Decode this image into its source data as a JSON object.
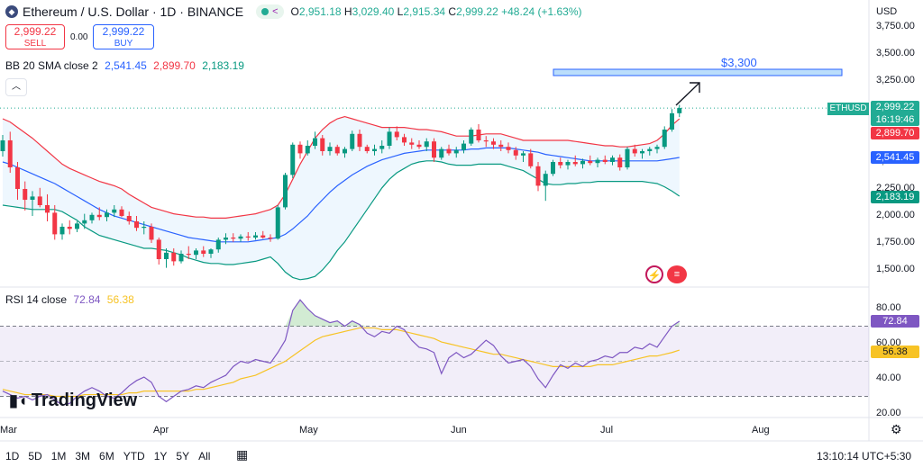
{
  "header": {
    "symbol_title": "Ethereum / U.S. Dollar · 1D · BINANCE",
    "ohlc": {
      "o_label": "O",
      "o": "2,951.18",
      "h_label": "H",
      "h": "3,029.40",
      "l_label": "L",
      "l": "2,915.34",
      "c_label": "C",
      "c": "2,999.22",
      "change": "+48.24 (+1.63%)"
    },
    "currency": "USD"
  },
  "trade": {
    "sell_price": "2,999.22",
    "sell_label": "SELL",
    "spread": "0.00",
    "buy_price": "2,999.22",
    "buy_label": "BUY"
  },
  "bb_indicator": {
    "label": "BB 20 SMA close 2",
    "basis": "2,541.45",
    "upper": "2,899.70",
    "lower": "2,183.19",
    "colors": {
      "basis": "#2962ff",
      "upper": "#f23645",
      "lower": "#089981"
    }
  },
  "rsi_indicator": {
    "label": "RSI 14 close",
    "rsi": "72.84",
    "ma": "56.38",
    "colors": {
      "rsi": "#7e57c2",
      "ma": "#f7c325"
    }
  },
  "price_axis": [
    "3,750.00",
    "3,500.00",
    "3,250.00",
    "3,000.00",
    "2,750.00",
    "2,500.00",
    "2,250.00",
    "2,000.00",
    "1,750.00",
    "1,500.00"
  ],
  "rsi_axis": [
    "80.00",
    "60.00",
    "40.00",
    "20.00"
  ],
  "price_tags": {
    "symbol": "ETHUSD",
    "last": "2,999.22",
    "countdown": "16:19:46",
    "upper": "2,899.70",
    "basis": "2,541.45",
    "lower": "2,183.19",
    "rsi": "72.84",
    "rsi_ma": "56.38"
  },
  "x_axis": [
    "Mar",
    "Apr",
    "May",
    "Jun",
    "Jul",
    "Aug"
  ],
  "drawing": {
    "label": "$3,300",
    "price": 3300
  },
  "timeframes": [
    "1D",
    "5D",
    "1M",
    "3M",
    "6M",
    "YTD",
    "1Y",
    "5Y",
    "All"
  ],
  "clock": "13:10:14 UTC+5:30",
  "brand": "TradingView",
  "colors": {
    "up": "#089981",
    "down": "#f23645",
    "last_price": "#22ab94",
    "accent": "#2962ff"
  },
  "icons": [
    "eth-logo-icon",
    "share-icon",
    "collapse-icon",
    "arrow-icon",
    "lightning-icon",
    "flag-icon",
    "settings-icon",
    "calendar-range-icon",
    "tradingview-logo-icon"
  ],
  "chart_data": {
    "type": "candlestick",
    "price_scale": {
      "min": 1400,
      "max": 3800
    },
    "candles": [
      {
        "o": 2600,
        "h": 2750,
        "l": 2550,
        "c": 2700
      },
      {
        "o": 2700,
        "h": 2780,
        "l": 2400,
        "c": 2450
      },
      {
        "o": 2450,
        "h": 2500,
        "l": 2150,
        "c": 2250
      },
      {
        "o": 2250,
        "h": 2320,
        "l": 2050,
        "c": 2150
      },
      {
        "o": 2150,
        "h": 2230,
        "l": 2000,
        "c": 2180
      },
      {
        "o": 2180,
        "h": 2260,
        "l": 2080,
        "c": 2100
      },
      {
        "o": 2100,
        "h": 2200,
        "l": 1950,
        "c": 2030
      },
      {
        "o": 2030,
        "h": 2100,
        "l": 1780,
        "c": 1830
      },
      {
        "o": 1830,
        "h": 1930,
        "l": 1780,
        "c": 1900
      },
      {
        "o": 1900,
        "h": 1960,
        "l": 1830,
        "c": 1880
      },
      {
        "o": 1880,
        "h": 1950,
        "l": 1850,
        "c": 1930
      },
      {
        "o": 1930,
        "h": 2020,
        "l": 1880,
        "c": 1960
      },
      {
        "o": 1960,
        "h": 2030,
        "l": 1930,
        "c": 2010
      },
      {
        "o": 2010,
        "h": 2080,
        "l": 1960,
        "c": 1990
      },
      {
        "o": 1990,
        "h": 2060,
        "l": 1950,
        "c": 2030
      },
      {
        "o": 2030,
        "h": 2100,
        "l": 1990,
        "c": 2060
      },
      {
        "o": 2060,
        "h": 2090,
        "l": 1990,
        "c": 2000
      },
      {
        "o": 2000,
        "h": 2040,
        "l": 1920,
        "c": 1950
      },
      {
        "o": 1950,
        "h": 2000,
        "l": 1860,
        "c": 1890
      },
      {
        "o": 1890,
        "h": 1950,
        "l": 1830,
        "c": 1900
      },
      {
        "o": 1900,
        "h": 1930,
        "l": 1750,
        "c": 1780
      },
      {
        "o": 1780,
        "h": 1800,
        "l": 1550,
        "c": 1600
      },
      {
        "o": 1600,
        "h": 1700,
        "l": 1520,
        "c": 1660
      },
      {
        "o": 1660,
        "h": 1700,
        "l": 1540,
        "c": 1580
      },
      {
        "o": 1580,
        "h": 1680,
        "l": 1560,
        "c": 1650
      },
      {
        "o": 1650,
        "h": 1720,
        "l": 1600,
        "c": 1640
      },
      {
        "o": 1640,
        "h": 1700,
        "l": 1600,
        "c": 1680
      },
      {
        "o": 1680,
        "h": 1720,
        "l": 1620,
        "c": 1650
      },
      {
        "o": 1650,
        "h": 1700,
        "l": 1610,
        "c": 1690
      },
      {
        "o": 1690,
        "h": 1800,
        "l": 1660,
        "c": 1780
      },
      {
        "o": 1780,
        "h": 1840,
        "l": 1740,
        "c": 1800
      },
      {
        "o": 1800,
        "h": 1840,
        "l": 1760,
        "c": 1790
      },
      {
        "o": 1790,
        "h": 1830,
        "l": 1760,
        "c": 1810
      },
      {
        "o": 1810,
        "h": 1850,
        "l": 1770,
        "c": 1800
      },
      {
        "o": 1800,
        "h": 1850,
        "l": 1780,
        "c": 1820
      },
      {
        "o": 1820,
        "h": 1860,
        "l": 1790,
        "c": 1800
      },
      {
        "o": 1800,
        "h": 1830,
        "l": 1760,
        "c": 1790
      },
      {
        "o": 1790,
        "h": 2100,
        "l": 1780,
        "c": 2080
      },
      {
        "o": 2080,
        "h": 2400,
        "l": 2060,
        "c": 2380
      },
      {
        "o": 2380,
        "h": 2680,
        "l": 2350,
        "c": 2660
      },
      {
        "o": 2660,
        "h": 2690,
        "l": 2530,
        "c": 2580
      },
      {
        "o": 2580,
        "h": 2700,
        "l": 2560,
        "c": 2650
      },
      {
        "o": 2650,
        "h": 2780,
        "l": 2620,
        "c": 2720
      },
      {
        "o": 2720,
        "h": 2750,
        "l": 2560,
        "c": 2600
      },
      {
        "o": 2600,
        "h": 2680,
        "l": 2560,
        "c": 2640
      },
      {
        "o": 2640,
        "h": 2660,
        "l": 2560,
        "c": 2580
      },
      {
        "o": 2580,
        "h": 2640,
        "l": 2540,
        "c": 2620
      },
      {
        "o": 2620,
        "h": 2790,
        "l": 2600,
        "c": 2760
      },
      {
        "o": 2760,
        "h": 2800,
        "l": 2600,
        "c": 2640
      },
      {
        "o": 2640,
        "h": 2660,
        "l": 2580,
        "c": 2600
      },
      {
        "o": 2600,
        "h": 2660,
        "l": 2560,
        "c": 2620
      },
      {
        "o": 2620,
        "h": 2700,
        "l": 2580,
        "c": 2650
      },
      {
        "o": 2650,
        "h": 2820,
        "l": 2620,
        "c": 2780
      },
      {
        "o": 2780,
        "h": 2830,
        "l": 2700,
        "c": 2730
      },
      {
        "o": 2730,
        "h": 2760,
        "l": 2650,
        "c": 2680
      },
      {
        "o": 2680,
        "h": 2720,
        "l": 2620,
        "c": 2660
      },
      {
        "o": 2660,
        "h": 2700,
        "l": 2620,
        "c": 2640
      },
      {
        "o": 2640,
        "h": 2720,
        "l": 2600,
        "c": 2690
      },
      {
        "o": 2690,
        "h": 2720,
        "l": 2500,
        "c": 2540
      },
      {
        "o": 2540,
        "h": 2640,
        "l": 2520,
        "c": 2620
      },
      {
        "o": 2620,
        "h": 2660,
        "l": 2560,
        "c": 2580
      },
      {
        "o": 2580,
        "h": 2640,
        "l": 2540,
        "c": 2610
      },
      {
        "o": 2610,
        "h": 2700,
        "l": 2580,
        "c": 2670
      },
      {
        "o": 2670,
        "h": 2820,
        "l": 2650,
        "c": 2800
      },
      {
        "o": 2800,
        "h": 2850,
        "l": 2680,
        "c": 2700
      },
      {
        "o": 2700,
        "h": 2740,
        "l": 2640,
        "c": 2690
      },
      {
        "o": 2690,
        "h": 2720,
        "l": 2620,
        "c": 2660
      },
      {
        "o": 2660,
        "h": 2700,
        "l": 2600,
        "c": 2640
      },
      {
        "o": 2640,
        "h": 2680,
        "l": 2580,
        "c": 2610
      },
      {
        "o": 2610,
        "h": 2640,
        "l": 2520,
        "c": 2560
      },
      {
        "o": 2560,
        "h": 2600,
        "l": 2500,
        "c": 2580
      },
      {
        "o": 2580,
        "h": 2620,
        "l": 2440,
        "c": 2460
      },
      {
        "o": 2460,
        "h": 2500,
        "l": 2230,
        "c": 2280
      },
      {
        "o": 2280,
        "h": 2420,
        "l": 2140,
        "c": 2390
      },
      {
        "o": 2390,
        "h": 2520,
        "l": 2370,
        "c": 2500
      },
      {
        "o": 2500,
        "h": 2540,
        "l": 2440,
        "c": 2470
      },
      {
        "o": 2470,
        "h": 2520,
        "l": 2430,
        "c": 2500
      },
      {
        "o": 2500,
        "h": 2560,
        "l": 2460,
        "c": 2480
      },
      {
        "o": 2480,
        "h": 2530,
        "l": 2440,
        "c": 2510
      },
      {
        "o": 2510,
        "h": 2560,
        "l": 2470,
        "c": 2490
      },
      {
        "o": 2490,
        "h": 2540,
        "l": 2450,
        "c": 2520
      },
      {
        "o": 2520,
        "h": 2560,
        "l": 2480,
        "c": 2500
      },
      {
        "o": 2500,
        "h": 2560,
        "l": 2470,
        "c": 2540
      },
      {
        "o": 2540,
        "h": 2570,
        "l": 2420,
        "c": 2450
      },
      {
        "o": 2450,
        "h": 2640,
        "l": 2430,
        "c": 2620
      },
      {
        "o": 2620,
        "h": 2660,
        "l": 2550,
        "c": 2580
      },
      {
        "o": 2580,
        "h": 2620,
        "l": 2530,
        "c": 2600
      },
      {
        "o": 2600,
        "h": 2640,
        "l": 2560,
        "c": 2620
      },
      {
        "o": 2620,
        "h": 2660,
        "l": 2580,
        "c": 2640
      },
      {
        "o": 2640,
        "h": 2830,
        "l": 2620,
        "c": 2800
      },
      {
        "o": 2800,
        "h": 2990,
        "l": 2780,
        "c": 2951
      },
      {
        "o": 2951.18,
        "h": 3029.4,
        "l": 2915.34,
        "c": 2999.22
      }
    ],
    "bb_upper": [
      2900,
      2870,
      2820,
      2770,
      2720,
      2660,
      2600,
      2540,
      2480,
      2440,
      2410,
      2380,
      2350,
      2320,
      2300,
      2280,
      2250,
      2200,
      2160,
      2120,
      2080,
      2060,
      2040,
      2020,
      2010,
      2000,
      1990,
      1990,
      1980,
      1980,
      1980,
      1990,
      2000,
      2010,
      2020,
      2040,
      2060,
      2100,
      2200,
      2340,
      2480,
      2600,
      2720,
      2800,
      2860,
      2900,
      2920,
      2900,
      2880,
      2860,
      2840,
      2820,
      2820,
      2820,
      2820,
      2810,
      2800,
      2800,
      2790,
      2780,
      2760,
      2740,
      2740,
      2740,
      2750,
      2760,
      2760,
      2760,
      2740,
      2720,
      2700,
      2700,
      2700,
      2700,
      2700,
      2700,
      2700,
      2690,
      2680,
      2670,
      2660,
      2650,
      2650,
      2640,
      2640,
      2650,
      2660,
      2670,
      2700,
      2760,
      2840,
      2899.7
    ],
    "bb_basis": [
      2500,
      2480,
      2450,
      2420,
      2390,
      2360,
      2330,
      2300,
      2260,
      2220,
      2180,
      2140,
      2100,
      2060,
      2030,
      2000,
      1980,
      1960,
      1940,
      1920,
      1900,
      1880,
      1860,
      1840,
      1820,
      1800,
      1790,
      1780,
      1770,
      1760,
      1760,
      1760,
      1760,
      1760,
      1770,
      1780,
      1790,
      1800,
      1830,
      1880,
      1940,
      2000,
      2080,
      2150,
      2220,
      2280,
      2330,
      2380,
      2420,
      2460,
      2490,
      2520,
      2540,
      2560,
      2580,
      2590,
      2600,
      2610,
      2610,
      2610,
      2610,
      2610,
      2610,
      2620,
      2620,
      2630,
      2630,
      2630,
      2630,
      2620,
      2610,
      2600,
      2590,
      2570,
      2560,
      2550,
      2540,
      2530,
      2520,
      2510,
      2510,
      2510,
      2510,
      2510,
      2510,
      2510,
      2510,
      2510,
      2510,
      2520,
      2530,
      2541.45
    ],
    "bb_lower": [
      2100,
      2090,
      2080,
      2070,
      2060,
      2060,
      2060,
      2060,
      2040,
      2000,
      1960,
      1900,
      1860,
      1820,
      1800,
      1780,
      1760,
      1740,
      1720,
      1700,
      1700,
      1690,
      1680,
      1660,
      1640,
      1610,
      1590,
      1570,
      1560,
      1560,
      1550,
      1550,
      1560,
      1570,
      1580,
      1600,
      1620,
      1560,
      1480,
      1430,
      1410,
      1420,
      1440,
      1500,
      1580,
      1680,
      1760,
      1860,
      1960,
      2060,
      2160,
      2260,
      2340,
      2400,
      2440,
      2480,
      2500,
      2510,
      2510,
      2500,
      2480,
      2470,
      2470,
      2470,
      2480,
      2480,
      2480,
      2480,
      2460,
      2440,
      2420,
      2380,
      2340,
      2300,
      2290,
      2290,
      2300,
      2300,
      2310,
      2310,
      2320,
      2320,
      2320,
      2320,
      2320,
      2320,
      2320,
      2310,
      2300,
      2270,
      2230,
      2183.19
    ],
    "rsi": [
      33,
      31,
      29,
      30,
      28,
      30,
      31,
      28,
      25,
      26,
      30,
      33,
      35,
      33,
      30,
      29,
      32,
      36,
      39,
      41,
      38,
      30,
      27,
      30,
      33,
      34,
      36,
      35,
      38,
      40,
      42,
      47,
      50,
      49,
      51,
      50,
      49,
      55,
      62,
      79,
      85,
      80,
      76,
      74,
      72,
      73,
      70,
      73,
      71,
      66,
      64,
      67,
      66,
      70,
      68,
      62,
      58,
      57,
      55,
      43,
      52,
      55,
      52,
      54,
      58,
      62,
      59,
      53,
      49,
      50,
      51,
      47,
      40,
      35,
      42,
      48,
      46,
      49,
      47,
      50,
      51,
      53,
      52,
      55,
      55,
      58,
      57,
      60,
      58,
      64,
      70,
      72.84
    ],
    "rsi_ma": [
      34,
      33,
      32,
      31,
      31,
      31,
      31,
      30,
      30,
      30,
      30,
      31,
      31,
      31,
      31,
      31,
      31,
      32,
      32,
      33,
      33,
      33,
      33,
      33,
      33,
      33,
      34,
      34,
      35,
      36,
      37,
      38,
      40,
      41,
      42,
      44,
      46,
      48,
      50,
      53,
      56,
      59,
      62,
      64,
      65,
      66,
      67,
      68,
      69,
      69,
      69,
      68,
      68,
      68,
      67,
      66,
      65,
      64,
      63,
      61,
      60,
      59,
      58,
      57,
      56,
      55,
      54,
      54,
      53,
      52,
      51,
      50,
      49,
      48,
      47,
      47,
      47,
      47,
      47,
      47,
      48,
      48,
      48,
      49,
      50,
      51,
      52,
      53,
      53,
      54,
      55,
      56.38
    ],
    "rsi_levels": {
      "upper": 70,
      "middle": 50,
      "lower": 30
    },
    "rsi_scale": {
      "min": 20,
      "max": 90
    }
  }
}
